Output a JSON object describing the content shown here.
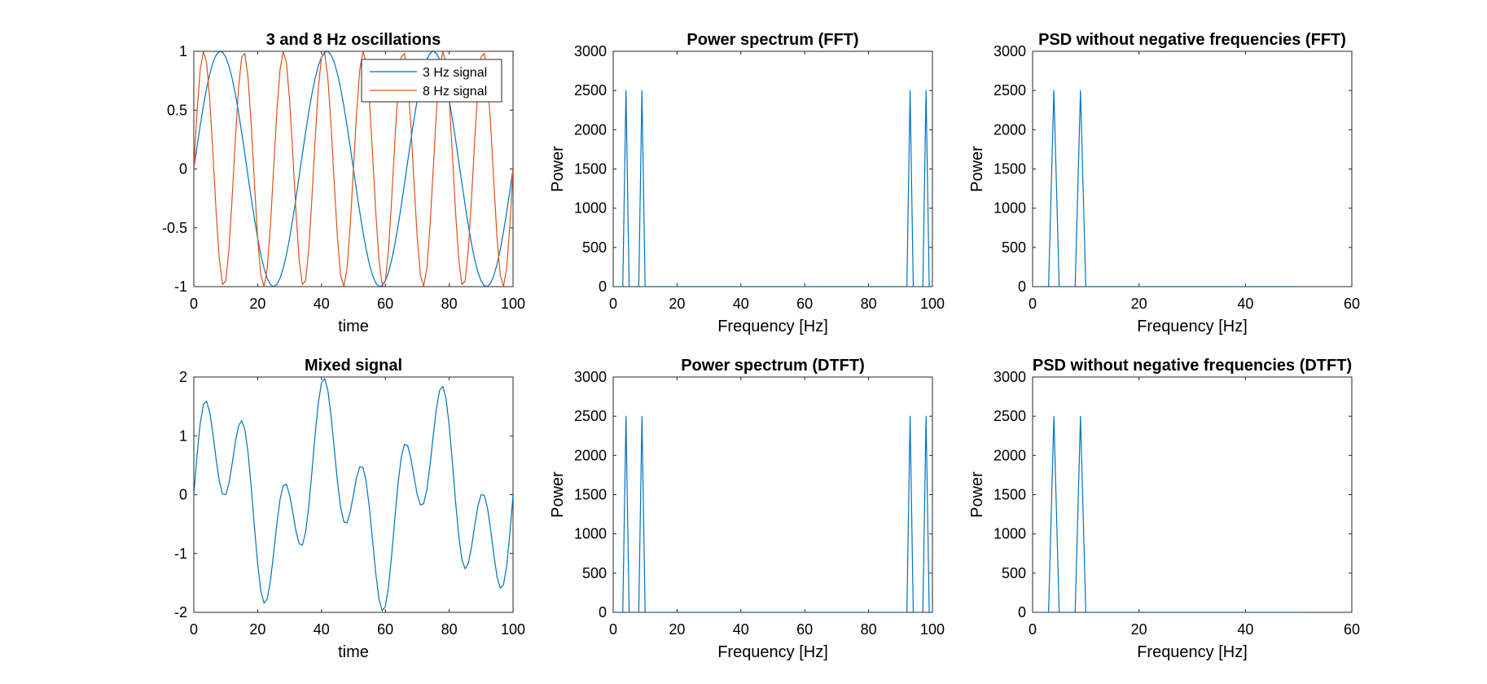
{
  "chart_data": [
    {
      "id": "osc",
      "type": "line",
      "title": "3 and 8 Hz oscillations",
      "xlabel": "time",
      "ylabel": "",
      "xlim": [
        0,
        100
      ],
      "ylim": [
        -1,
        1
      ],
      "xticks": [
        0,
        20,
        40,
        60,
        80,
        100
      ],
      "yticks": [
        -1,
        -0.5,
        0,
        0.5,
        1
      ],
      "yticklabels": [
        "-1",
        "-0.5",
        "0",
        "0.5",
        "1"
      ],
      "grid": false,
      "legend": "top-right",
      "series": [
        {
          "name": "3 Hz signal",
          "color": "#0072BD",
          "formula": "sin(2*pi*3*t/100)",
          "x_range": [
            0,
            100
          ],
          "step": 1
        },
        {
          "name": "8 Hz signal",
          "color": "#D95319",
          "formula": "sin(2*pi*8*t/100)",
          "x_range": [
            0,
            100
          ],
          "step": 1
        }
      ]
    },
    {
      "id": "fft",
      "type": "line",
      "title": "Power spectrum (FFT)",
      "xlabel": "Frequency [Hz]",
      "ylabel": "Power",
      "xlim": [
        0,
        100
      ],
      "ylim": [
        0,
        3000
      ],
      "xticks": [
        0,
        20,
        40,
        60,
        80,
        100
      ],
      "yticks": [
        0,
        500,
        1000,
        1500,
        2000,
        2500,
        3000
      ],
      "grid": false,
      "series": [
        {
          "color": "#0072BD",
          "x": [
            0,
            3,
            4,
            5,
            8,
            9,
            10,
            92,
            93,
            94,
            97,
            98,
            99,
            100
          ],
          "y": [
            0,
            0,
            2500,
            0,
            0,
            2500,
            0,
            0,
            2500,
            0,
            0,
            2500,
            0,
            0
          ]
        }
      ]
    },
    {
      "id": "psd_fft",
      "type": "line",
      "title": "PSD without negative frequencies (FFT)",
      "xlabel": "Frequency [Hz]",
      "ylabel": "Power",
      "xlim": [
        0,
        60
      ],
      "ylim": [
        0,
        3000
      ],
      "xticks": [
        0,
        20,
        40,
        60
      ],
      "yticks": [
        0,
        500,
        1000,
        1500,
        2000,
        2500,
        3000
      ],
      "grid": false,
      "series": [
        {
          "color": "#0072BD",
          "x": [
            0,
            3,
            4,
            5,
            8,
            9,
            10,
            51
          ],
          "y": [
            0,
            0,
            2500,
            0,
            0,
            2500,
            0,
            0
          ]
        }
      ]
    },
    {
      "id": "mixed",
      "type": "line",
      "title": "Mixed signal",
      "xlabel": "time",
      "ylabel": "",
      "xlim": [
        0,
        100
      ],
      "ylim": [
        -2,
        2
      ],
      "xticks": [
        0,
        20,
        40,
        60,
        80,
        100
      ],
      "yticks": [
        -2,
        -1,
        0,
        1,
        2
      ],
      "grid": false,
      "series": [
        {
          "color": "#0072BD",
          "formula": "sin(2*pi*3*t/100)+sin(2*pi*8*t/100)",
          "x_range": [
            0,
            100
          ],
          "step": 1
        }
      ]
    },
    {
      "id": "dtft",
      "type": "line",
      "title": "Power spectrum (DTFT)",
      "xlabel": "Frequency [Hz]",
      "ylabel": "Power",
      "xlim": [
        0,
        100
      ],
      "ylim": [
        0,
        3000
      ],
      "xticks": [
        0,
        20,
        40,
        60,
        80,
        100
      ],
      "yticks": [
        0,
        500,
        1000,
        1500,
        2000,
        2500,
        3000
      ],
      "grid": false,
      "series": [
        {
          "color": "#0072BD",
          "x": [
            0,
            3,
            4,
            5,
            8,
            9,
            10,
            92,
            93,
            94,
            97,
            98,
            99,
            100
          ],
          "y": [
            0,
            0,
            2500,
            0,
            0,
            2500,
            0,
            0,
            2500,
            0,
            0,
            2500,
            0,
            0
          ]
        }
      ]
    },
    {
      "id": "psd_dtft",
      "type": "line",
      "title": "PSD without negative frequencies (DTFT)",
      "xlabel": "Frequency [Hz]",
      "ylabel": "Power",
      "xlim": [
        0,
        60
      ],
      "ylim": [
        0,
        3000
      ],
      "xticks": [
        0,
        20,
        40,
        60
      ],
      "yticks": [
        0,
        500,
        1000,
        1500,
        2000,
        2500,
        3000
      ],
      "grid": false,
      "series": [
        {
          "color": "#0072BD",
          "x": [
            0,
            3,
            4,
            5,
            8,
            9,
            10,
            51
          ],
          "y": [
            0,
            0,
            2500,
            0,
            0,
            2500,
            0,
            0
          ]
        }
      ]
    }
  ]
}
